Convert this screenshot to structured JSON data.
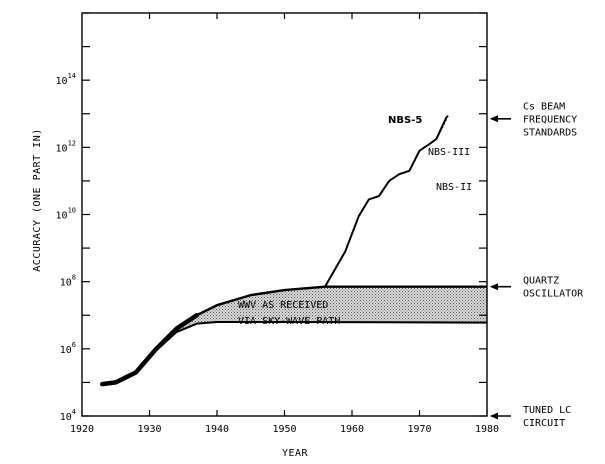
{
  "chart_data": {
    "type": "line",
    "title": "",
    "xlabel": "YEAR",
    "ylabel": "ACCURACY (ONE PART IN)",
    "xlim": [
      1920,
      1980
    ],
    "ylim_log10": [
      4,
      16
    ],
    "y_scale": "log",
    "grid": false,
    "x_ticks": [
      "1920",
      "1930",
      "1940",
      "1950",
      "1960",
      "1970",
      "1980"
    ],
    "y_ticks": [
      {
        "base": "10",
        "exp": "4",
        "log10": 4
      },
      {
        "base": "10",
        "exp": "6",
        "log10": 6
      },
      {
        "base": "10",
        "exp": "8",
        "log10": 8
      },
      {
        "base": "10",
        "exp": "10",
        "log10": 10
      },
      {
        "base": "10",
        "exp": "12",
        "log10": 12
      },
      {
        "base": "10",
        "exp": "14",
        "log10": 14
      }
    ],
    "series": [
      {
        "name": "NBS-5",
        "values": [
          {
            "x": 1956,
            "log10": 7.85
          },
          {
            "x": 1959,
            "log10": 8.9
          },
          {
            "x": 1961,
            "log10": 9.95
          },
          {
            "x": 1962.5,
            "log10": 10.45
          },
          {
            "x": 1964,
            "log10": 10.55
          },
          {
            "x": 1965.5,
            "log10": 11.0
          },
          {
            "x": 1967,
            "log10": 11.2
          },
          {
            "x": 1968.5,
            "log10": 11.3
          },
          {
            "x": 1970,
            "log10": 11.9
          },
          {
            "x": 1971.5,
            "log10": 12.1
          },
          {
            "x": 1972.5,
            "log10": 12.25
          },
          {
            "x": 1974,
            "log10": 12.9
          }
        ]
      },
      {
        "name": "WWV AS RECEIVED VIA SKY-WAVE PATH",
        "upper": [
          {
            "x": 1923,
            "log10": 4.95
          },
          {
            "x": 1925,
            "log10": 5.0
          },
          {
            "x": 1928,
            "log10": 5.3
          },
          {
            "x": 1931,
            "log10": 6.0
          },
          {
            "x": 1934,
            "log10": 6.6
          },
          {
            "x": 1937,
            "log10": 7.0
          },
          {
            "x": 1940,
            "log10": 7.3
          },
          {
            "x": 1945,
            "log10": 7.6
          },
          {
            "x": 1950,
            "log10": 7.75
          },
          {
            "x": 1956,
            "log10": 7.85
          },
          {
            "x": 1960,
            "log10": 7.85
          },
          {
            "x": 1980,
            "log10": 7.85
          }
        ],
        "lower": [
          {
            "x": 1923,
            "log10": 4.95
          },
          {
            "x": 1925,
            "log10": 5.0
          },
          {
            "x": 1928,
            "log10": 5.3
          },
          {
            "x": 1931,
            "log10": 5.95
          },
          {
            "x": 1934,
            "log10": 6.5
          },
          {
            "x": 1937,
            "log10": 6.75
          },
          {
            "x": 1940,
            "log10": 6.8
          },
          {
            "x": 1950,
            "log10": 6.8
          },
          {
            "x": 1980,
            "log10": 6.78
          }
        ]
      }
    ],
    "annotations": {
      "nbs5": "NBS-5",
      "nbs3": "NBS-III",
      "nbs2": "NBS-II",
      "wwv_line1": "WWV AS RECEIVED",
      "wwv_line2": "VIA SKY-WAVE PATH"
    },
    "right_labels": [
      {
        "lines": [
          "Cs BEAM",
          "FREQUENCY",
          "STANDARDS"
        ],
        "log10": 12.85
      },
      {
        "lines": [
          "QUARTZ",
          "OSCILLATOR"
        ],
        "log10": 7.85
      },
      {
        "lines": [
          "TUNED LC",
          "CIRCUIT"
        ],
        "log10": 4.0
      }
    ]
  }
}
